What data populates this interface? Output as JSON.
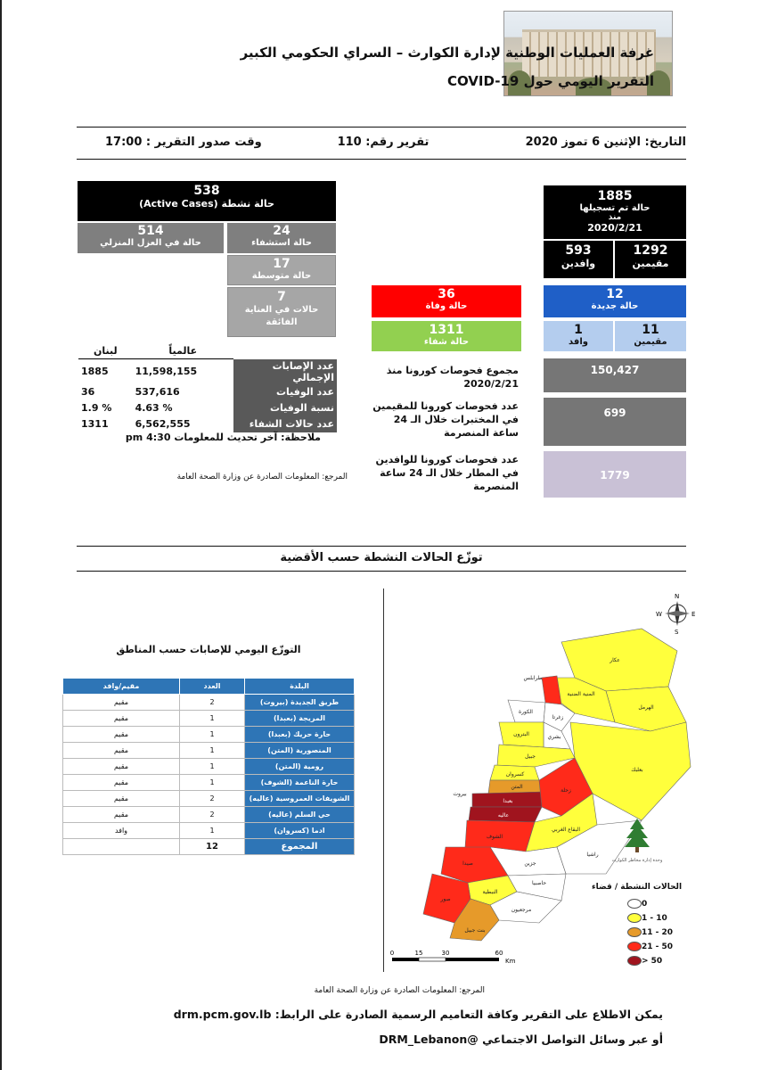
{
  "header": {
    "title": "غرفة العمليات الوطنية لإدارة الكوارث – السراي الحكومي الكبير",
    "subtitle": "التقرير اليومي حول COVID-19"
  },
  "meta": {
    "date": "التاريخ: الإثنين 6 تموز 2020",
    "report_no": "تقرير رقم: 110",
    "time": "وقت صدور التقرير : 17:00"
  },
  "active": {
    "total": "538",
    "total_label": "حالة نشطة (Active Cases)",
    "home_num": "514",
    "home_label": "حالة في العزل المنزلي",
    "hosp_num": "24",
    "hosp_label": "حالة استشفاء",
    "moderate_num": "17",
    "moderate_label": "حالة متوسطة",
    "icu_num": "7",
    "icu_label": "حالات في العناية الفائقة"
  },
  "registered": {
    "total": "1885",
    "label1": "حالة تم تسجيلها",
    "label2": "منذ",
    "date": "2020/2/21",
    "residents_num": "1292",
    "residents_label": "مقيمين",
    "arrivals_num": "593",
    "arrivals_label": "وافدين",
    "new_num": "12",
    "new_label": "حالة جديدة",
    "new_res_num": "11",
    "new_res_label": "مقيمين",
    "new_arr_num": "1",
    "new_arr_label": "وافد",
    "deaths_num": "36",
    "deaths_label": "حالة وفاة",
    "recovered_num": "1311",
    "recovered_label": "حالة شفاء"
  },
  "stats": {
    "col_lebanon": "لبنان",
    "col_world": "عالمياً",
    "rows": [
      {
        "label": "عدد الإصابات الإجمالي",
        "world": "11,598,155",
        "lebanon": "1885"
      },
      {
        "label": "عدد الوفيات",
        "world": "537,616",
        "lebanon": "36"
      },
      {
        "label": "نسبة الوفيات",
        "world": "4.63 %",
        "lebanon": "1.9 %"
      },
      {
        "label": "عدد حالات الشفاء",
        "world": "6,562,555",
        "lebanon": "1311"
      }
    ],
    "note": "ملاحظة: آخر تحديث للمعلومات 4:30 pm",
    "source": "المرجع: المعلومات الصادرة عن وزارة الصحة العامة"
  },
  "tests": {
    "total_label": "مجموع فحوصات كورونا منذ 2020/2/21",
    "total_value": "150,427",
    "res_label": "عدد فحوصات كورونا للمقيمين في المختبرات خلال الـ 24 ساعة المنصرمة",
    "res_value": "699",
    "arr_label": "عدد فحوصات كورونا للوافدين في المطار خلال الـ 24 ساعة المنصرمة",
    "arr_value": "1779"
  },
  "section_title": "توزّع الحالات النشطة حسب الأقضية",
  "distribution": {
    "title": "التوزّع اليومي للإصابات حسب المناطق",
    "headers": {
      "town": "البلدة",
      "count": "العدد",
      "type": "مقيم/وافد"
    },
    "rows": [
      {
        "town": "طريق الجديدة (بيروت)",
        "count": "2",
        "type": "مقيم"
      },
      {
        "town": "المريجة (بعبدا)",
        "count": "1",
        "type": "مقيم"
      },
      {
        "town": "حارة حريك (بعبدا)",
        "count": "1",
        "type": "مقيم"
      },
      {
        "town": "المنصورية (المتن)",
        "count": "1",
        "type": "مقيم"
      },
      {
        "town": "رومية (المتن)",
        "count": "1",
        "type": "مقيم"
      },
      {
        "town": "حارة الناعمة (الشوف)",
        "count": "1",
        "type": "مقيم"
      },
      {
        "town": "الشويفات العمروسية (عاليه)",
        "count": "2",
        "type": "مقيم"
      },
      {
        "town": "حي السلم (عاليه)",
        "count": "2",
        "type": "مقيم"
      },
      {
        "town": "ادما (كسروان)",
        "count": "1",
        "type": "وافد"
      }
    ],
    "total_label": "المجموع",
    "total_value": "12"
  },
  "map": {
    "compass": {
      "n": "N",
      "s": "S",
      "e": "E",
      "w": "W"
    },
    "scale": [
      "0",
      "15",
      "30",
      "60"
    ],
    "scale_unit": "Km",
    "districts": [
      "عكار",
      "طرابلس",
      "المنية الضنية",
      "الهرمل",
      "الكورة",
      "زغرتا",
      "بشري",
      "البترون",
      "بعلبك",
      "جبيل",
      "كسروان",
      "المتن",
      "بيروت",
      "بعبدا",
      "عاليه",
      "زحلة",
      "الشوف",
      "البقاع الغربي",
      "راشيا",
      "جزين",
      "صيدا",
      "النبطية",
      "حاصبيا",
      "صور",
      "مرجعيون",
      "بنت جبيل"
    ],
    "ministry_label": "وحدة إدارة مخاطر الكوارث",
    "legend_title": "الحالات النشطة / قضاء",
    "legend": [
      {
        "range": "0",
        "color": "#ffffff"
      },
      {
        "range": "1 - 10",
        "color": "#ffff3c"
      },
      {
        "range": "11 - 20",
        "color": "#e69a2a"
      },
      {
        "range": "21 - 50",
        "color": "#ff2a1a"
      },
      {
        "range": "> 50",
        "color": "#a0141e"
      }
    ]
  },
  "footer": {
    "source": "المرجع: المعلومات الصادرة عن وزارة الصحة العامة",
    "line1": "يمكن الاطلاع على التقرير وكافة التعاميم الرسمية الصادرة على الرابط: drm.pcm.gov.lb",
    "line2": "أو عبر وسائل التواصل الاجتماعي @DRM_Lebanon"
  }
}
